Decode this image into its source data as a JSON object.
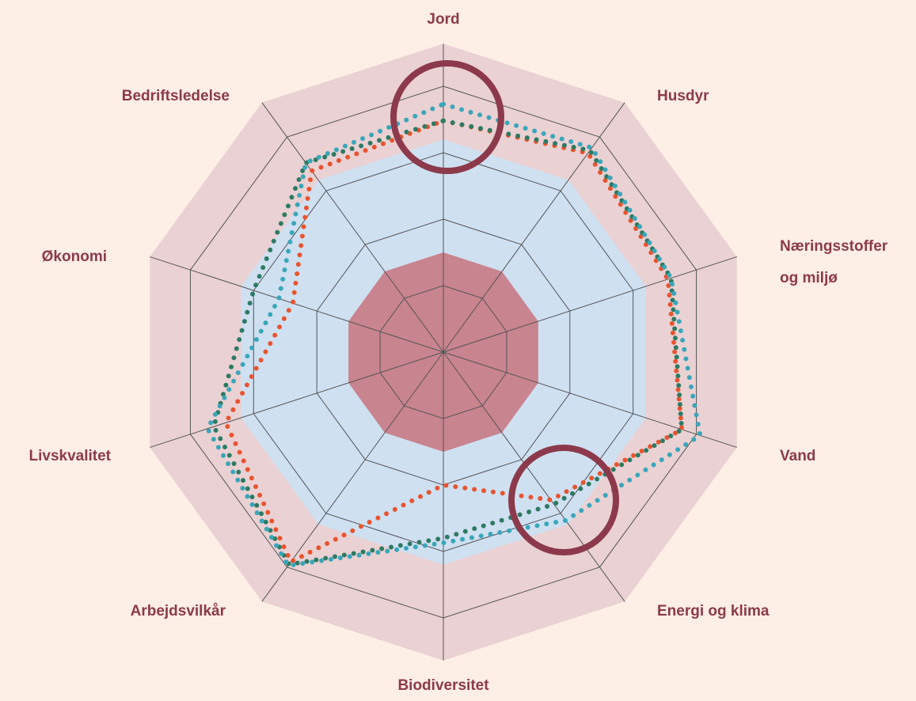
{
  "chart_data": {
    "type": "radar",
    "categories": [
      "Jord",
      "Husdyr",
      "Næringsstoffer og miljø",
      "Vand",
      "Energi og klima",
      "Biodiversitet",
      "Arbejdsvilkår",
      "Livskvalitet",
      "Økonomi",
      "Bedriftsledelse"
    ],
    "rlim": [
      0,
      4
    ],
    "rticks": [
      1,
      2,
      3,
      4
    ],
    "bands": [
      {
        "to": 4.64,
        "color": "#ead1d3"
      },
      {
        "to": 3.2,
        "color": "#cfe0f1"
      },
      {
        "to": 1.5,
        "color": "#c8848f"
      }
    ],
    "series": [
      {
        "color": "#e8542f",
        "values": [
          3.48,
          3.7,
          3.55,
          3.77,
          2.75,
          2.0,
          3.9,
          3.44,
          2.38,
          3.37
        ]
      },
      {
        "color": "#2e7a63",
        "values": [
          3.48,
          3.75,
          3.6,
          3.77,
          2.83,
          2.8,
          3.95,
          3.63,
          3.0,
          3.52
        ]
      },
      {
        "color": "#3aa6b9",
        "values": [
          3.73,
          3.8,
          3.6,
          4.06,
          3.13,
          2.87,
          3.97,
          3.73,
          2.6,
          3.52
        ]
      }
    ]
  }
}
